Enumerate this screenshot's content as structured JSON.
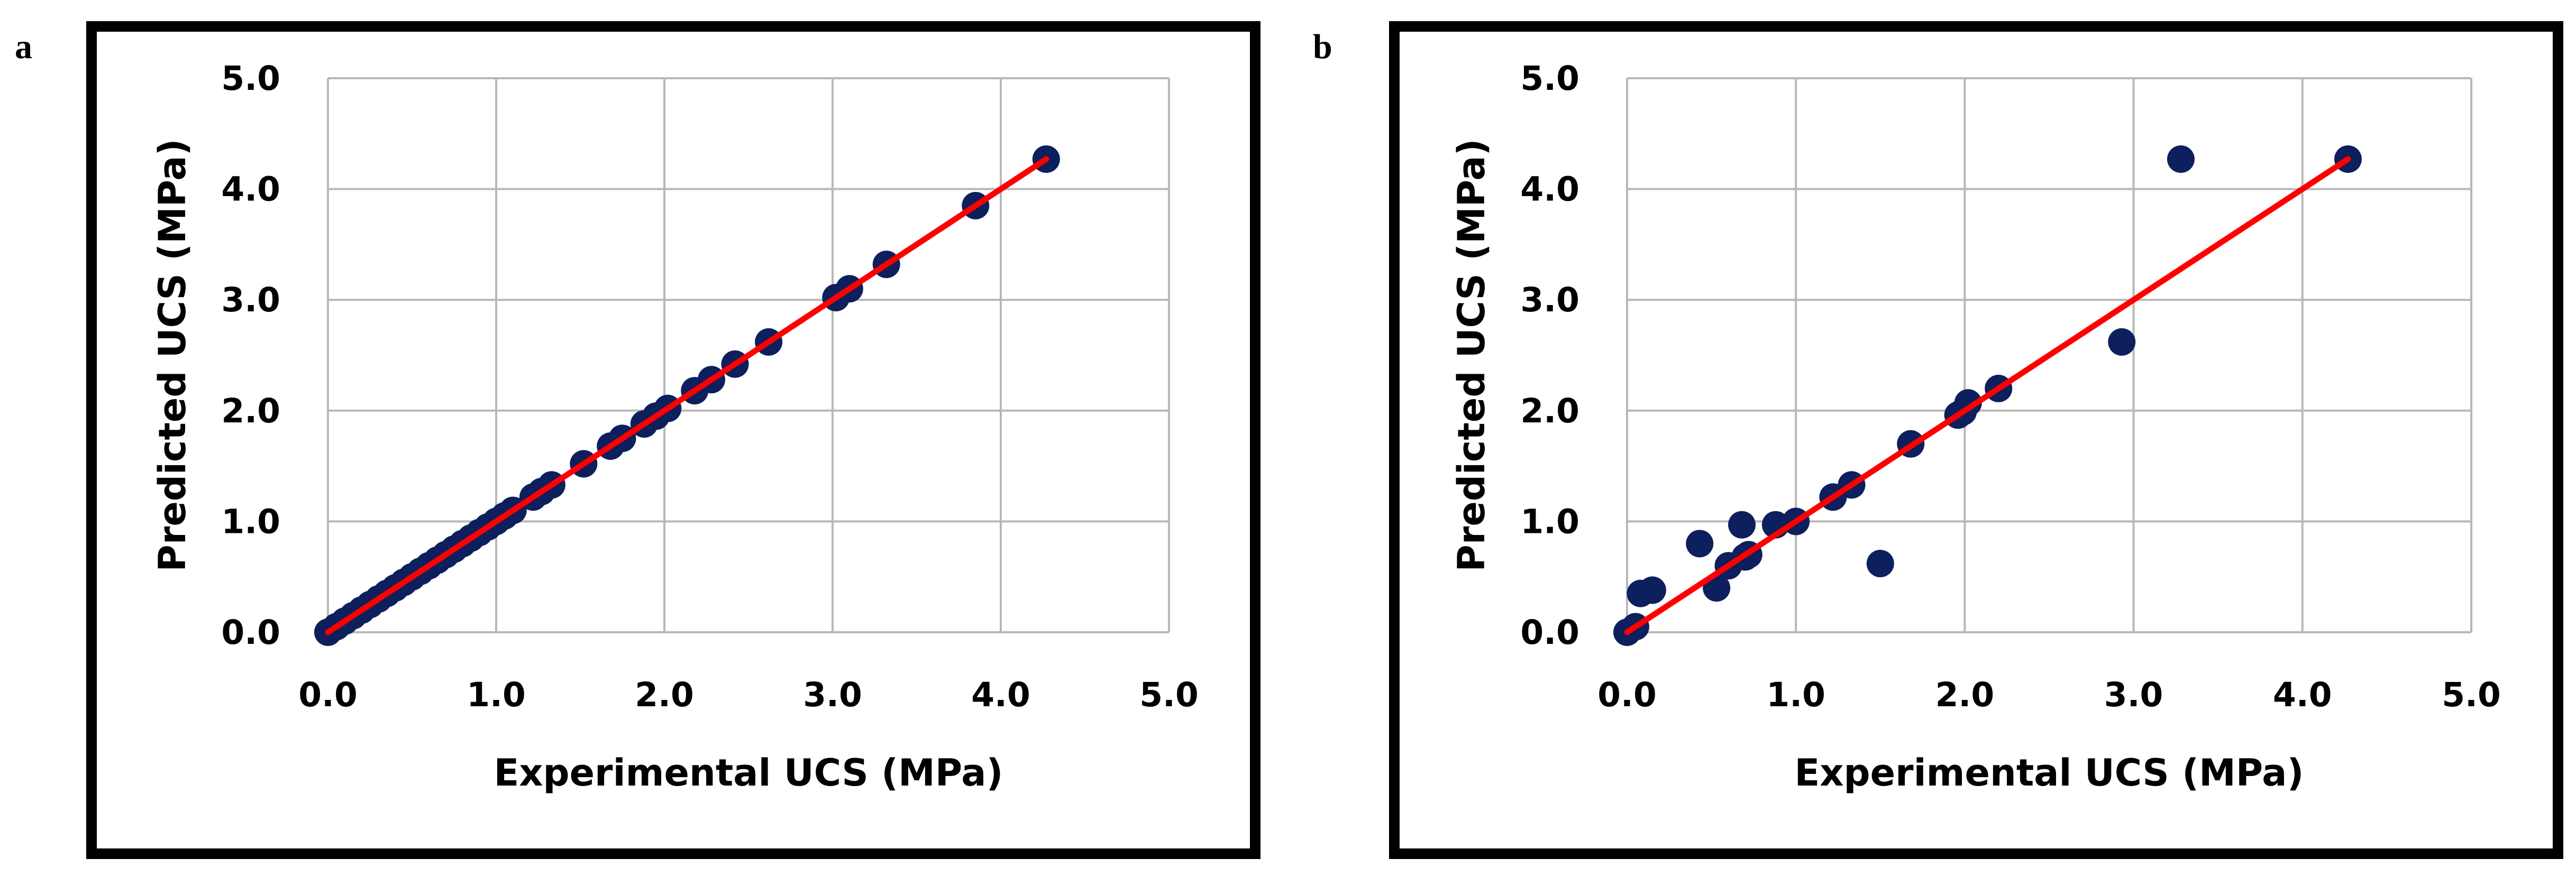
{
  "chart_data": [
    {
      "panel": "a",
      "type": "scatter",
      "xlabel": "Experimental UCS (MPa)",
      "ylabel": "Predicted UCS (MPa)",
      "xlim": [
        0,
        5
      ],
      "ylim": [
        0,
        5
      ],
      "xticks": [
        "0.0",
        "1.0",
        "2.0",
        "3.0",
        "4.0",
        "5.0"
      ],
      "yticks": [
        "0.0",
        "1.0",
        "2.0",
        "3.0",
        "4.0",
        "5.0"
      ],
      "grid": true,
      "fit_line": {
        "x": [
          0,
          4.27
        ],
        "y": [
          0,
          4.27
        ],
        "color": "#ff0000"
      },
      "marker_color": "#0d1f5c",
      "points": {
        "x": [
          0.0,
          0.05,
          0.1,
          0.15,
          0.2,
          0.25,
          0.3,
          0.35,
          0.4,
          0.45,
          0.5,
          0.55,
          0.6,
          0.65,
          0.7,
          0.75,
          0.8,
          0.85,
          0.9,
          0.95,
          1.0,
          1.05,
          1.1,
          1.22,
          1.27,
          1.33,
          1.52,
          1.68,
          1.75,
          1.88,
          1.95,
          2.02,
          2.18,
          2.28,
          2.42,
          2.62,
          3.02,
          3.1,
          3.32,
          3.85,
          4.27
        ],
        "y": [
          0.0,
          0.05,
          0.1,
          0.15,
          0.2,
          0.25,
          0.3,
          0.35,
          0.4,
          0.45,
          0.5,
          0.55,
          0.6,
          0.65,
          0.7,
          0.75,
          0.8,
          0.85,
          0.9,
          0.95,
          1.0,
          1.05,
          1.1,
          1.22,
          1.27,
          1.33,
          1.52,
          1.68,
          1.75,
          1.88,
          1.95,
          2.02,
          2.18,
          2.28,
          2.42,
          2.62,
          3.02,
          3.1,
          3.32,
          3.85,
          4.27
        ]
      }
    },
    {
      "panel": "b",
      "type": "scatter",
      "xlabel": "Experimental UCS (MPa)",
      "ylabel": "Predicted UCS (MPa)",
      "xlim": [
        0,
        5
      ],
      "ylim": [
        0,
        5
      ],
      "xticks": [
        "0.0",
        "1.0",
        "2.0",
        "3.0",
        "4.0",
        "5.0"
      ],
      "yticks": [
        "0.0",
        "1.0",
        "2.0",
        "3.0",
        "4.0",
        "5.0"
      ],
      "grid": true,
      "fit_line": {
        "x": [
          0,
          4.27
        ],
        "y": [
          0,
          4.27
        ],
        "color": "#ff0000"
      },
      "marker_color": "#0d1f5c",
      "points": {
        "x": [
          0.0,
          0.05,
          0.08,
          0.15,
          0.43,
          0.53,
          0.6,
          0.68,
          0.7,
          0.72,
          0.88,
          1.0,
          1.22,
          1.33,
          1.5,
          1.68,
          1.96,
          1.99,
          2.02,
          2.2,
          2.93,
          3.28,
          4.27
        ],
        "y": [
          0.0,
          0.05,
          0.35,
          0.38,
          0.8,
          0.4,
          0.6,
          0.97,
          0.68,
          0.7,
          0.97,
          1.0,
          1.22,
          1.33,
          0.62,
          1.7,
          1.96,
          1.99,
          2.07,
          2.2,
          2.62,
          4.27,
          4.27
        ]
      }
    }
  ]
}
